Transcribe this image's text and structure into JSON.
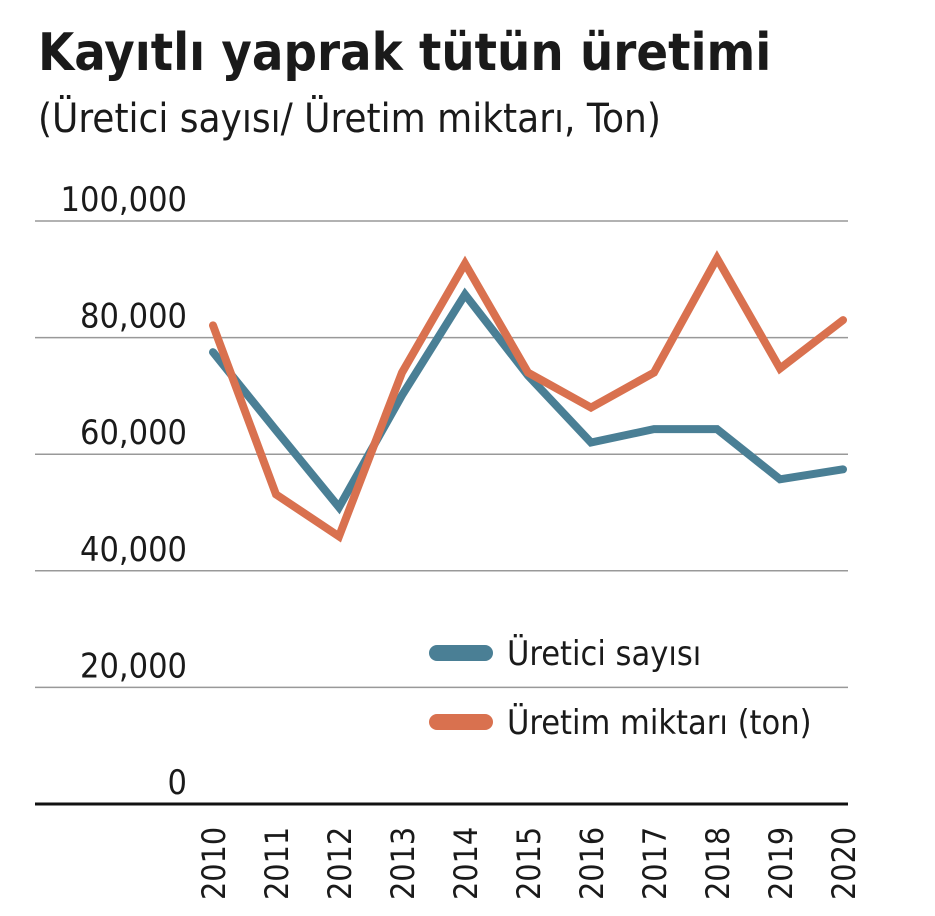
{
  "chart_data": {
    "type": "line",
    "title": "Kayıtlı yaprak tütün üretimi",
    "subtitle": "(Üretici sayısı/ Üretim miktarı, Ton)",
    "categories": [
      "2010",
      "2011",
      "2012",
      "2013",
      "2014",
      "2015",
      "2016",
      "2017",
      "2018",
      "2019",
      "2020"
    ],
    "series": [
      {
        "name": "Üretici sayısı",
        "color": "#4a7f95",
        "values": [
          77500,
          64100,
          50900,
          70100,
          87400,
          73500,
          62000,
          64300,
          64300,
          55700,
          57400
        ]
      },
      {
        "name": "Üretim miktarı (ton)",
        "color": "#d9714f",
        "values": [
          82100,
          53100,
          45900,
          74000,
          92700,
          74000,
          68000,
          74000,
          93600,
          74700,
          83000
        ]
      }
    ],
    "ylim": [
      0,
      100000
    ],
    "yticks": [
      {
        "value": 0,
        "label": "0"
      },
      {
        "value": 20000,
        "label": "20,000"
      },
      {
        "value": 40000,
        "label": "40,000"
      },
      {
        "value": 60000,
        "label": "60,000"
      },
      {
        "value": 80000,
        "label": "80,000"
      },
      {
        "value": 100000,
        "label": "100,000"
      }
    ],
    "grid": true
  }
}
